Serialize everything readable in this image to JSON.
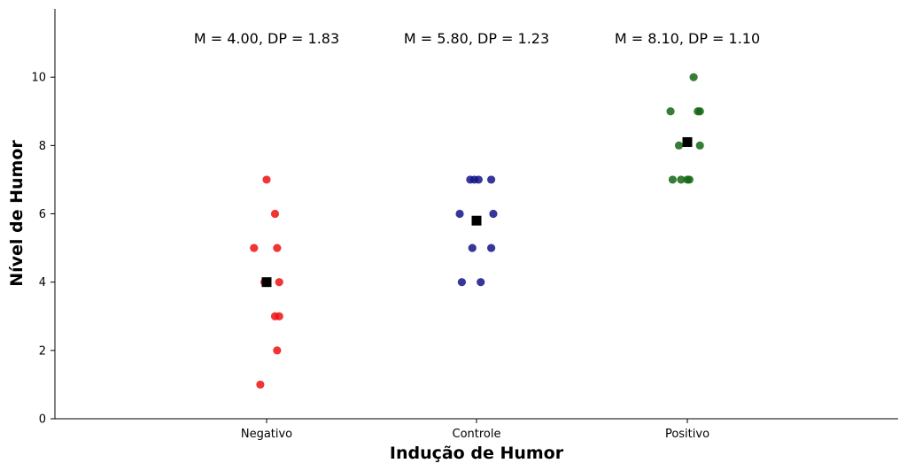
{
  "chart_data": {
    "type": "scatter",
    "xlabel": "Indução de Humor",
    "ylabel": "Nível de Humor",
    "ylim": [
      0,
      12
    ],
    "y_ticks": [
      0,
      2,
      4,
      6,
      8,
      10
    ],
    "grid": false,
    "categories": [
      "Negativo",
      "Controle",
      "Positivo"
    ],
    "groups": [
      {
        "category": "Negativo",
        "color": "#ee1111",
        "values": [
          7,
          6,
          5,
          5,
          4,
          4,
          3,
          3,
          2,
          1
        ],
        "jitter": [
          0.0,
          0.04,
          -0.06,
          0.05,
          -0.01,
          0.06,
          0.04,
          0.06,
          0.05,
          -0.03
        ],
        "mean": 4.0,
        "sd": 1.83,
        "stat_label": "M = 4.00,  DP = 1.83"
      },
      {
        "category": "Controle",
        "color": "#141488",
        "values": [
          7,
          7,
          7,
          7,
          6,
          6,
          5,
          5,
          4,
          4
        ],
        "jitter": [
          -0.03,
          -0.01,
          0.01,
          0.07,
          -0.08,
          0.08,
          -0.02,
          0.07,
          -0.07,
          0.02
        ],
        "mean": 5.8,
        "sd": 1.23,
        "stat_label": "M = 5.80,  DP = 1.23"
      },
      {
        "category": "Positivo",
        "color": "#136613",
        "values": [
          10,
          9,
          9,
          9,
          8,
          8,
          7,
          7,
          7,
          7
        ],
        "jitter": [
          0.03,
          -0.08,
          0.05,
          0.06,
          -0.04,
          0.06,
          -0.07,
          -0.03,
          0.0,
          0.01
        ],
        "mean": 8.1,
        "sd": 1.1,
        "stat_label": "M = 8.10,  DP = 1.10"
      }
    ],
    "mean_marker_color": "#000000"
  }
}
